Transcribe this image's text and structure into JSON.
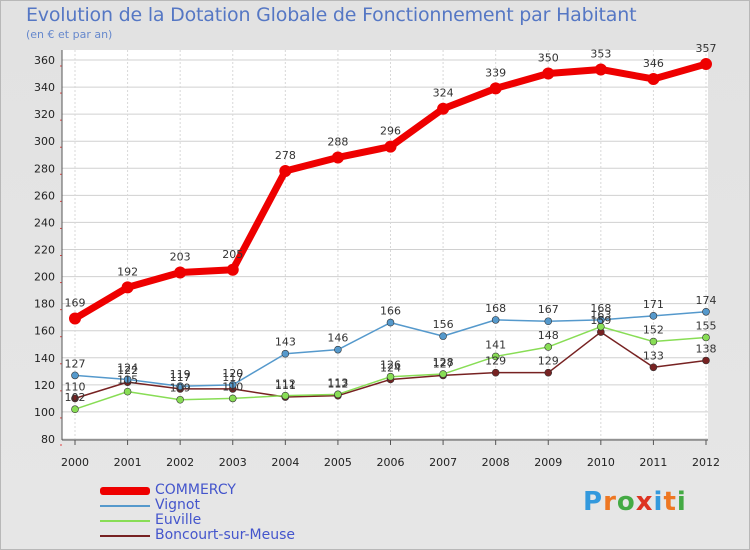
{
  "chart_data": {
    "type": "line",
    "title": "Evolution de la Dotation Globale de Fonctionnement par Habitant",
    "subtitle": "(en € et par an)",
    "x": [
      "2000",
      "2001",
      "2002",
      "2003",
      "2004",
      "2005",
      "2006",
      "2007",
      "2008",
      "2009",
      "2010",
      "2011",
      "2012"
    ],
    "yticks": [
      "80",
      "100",
      "120",
      "140",
      "160",
      "180",
      "200",
      "220",
      "240",
      "260",
      "280",
      "300",
      "320",
      "340",
      "360"
    ],
    "ylim": [
      80,
      360
    ],
    "series": [
      {
        "name": "COMMERCY",
        "color": "#ee0000",
        "values": [
          169,
          192,
          203,
          205,
          278,
          288,
          296,
          324,
          339,
          350,
          353,
          346,
          357
        ]
      },
      {
        "name": "Vignot",
        "color": "#5599cc",
        "values": [
          127,
          124,
          119,
          120,
          143,
          146,
          166,
          156,
          168,
          167,
          168,
          171,
          174
        ]
      },
      {
        "name": "Euville",
        "color": "#88dd55",
        "values": [
          102,
          115,
          109,
          110,
          112,
          113,
          126,
          128,
          141,
          148,
          163,
          152,
          155
        ]
      },
      {
        "name": "Boncourt-sur-Meuse",
        "color": "#772222",
        "values": [
          110,
          122,
          117,
          117,
          111,
          112,
          124,
          127,
          129,
          129,
          159,
          133,
          138
        ]
      }
    ]
  },
  "logo": {
    "text": "Proxiti",
    "letters": [
      "P",
      "r",
      "o",
      "x",
      "i",
      "t",
      "i"
    ],
    "colors": [
      "#3399dd",
      "#ee7722",
      "#44aa44",
      "#dd3322",
      "#3399dd",
      "#ee7722",
      "#44aa44"
    ]
  }
}
